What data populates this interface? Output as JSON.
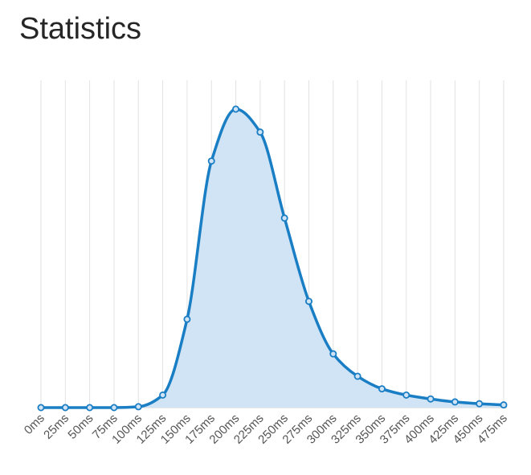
{
  "page": {
    "title": "Statistics"
  },
  "chart_data": {
    "type": "area",
    "title": "",
    "xlabel": "",
    "ylabel": "",
    "categories": [
      "0ms",
      "25ms",
      "50ms",
      "75ms",
      "100ms",
      "125ms",
      "150ms",
      "175ms",
      "200ms",
      "225ms",
      "250ms",
      "275ms",
      "300ms",
      "325ms",
      "350ms",
      "375ms",
      "400ms",
      "425ms",
      "450ms",
      "475ms"
    ],
    "series": [
      {
        "values": [
          0.0,
          0.0,
          0.0,
          0.0,
          0.3,
          4.2,
          29.6,
          82.6,
          100.0,
          92.3,
          63.5,
          35.6,
          18.0,
          10.5,
          6.3,
          4.2,
          2.9,
          1.9,
          1.3,
          0.9
        ],
        "color": "#1a7ec4",
        "fill": "#d1e4f5"
      }
    ],
    "ylim": [
      0,
      100
    ],
    "grid": true,
    "legend": "none",
    "y_axis_visible": false
  }
}
